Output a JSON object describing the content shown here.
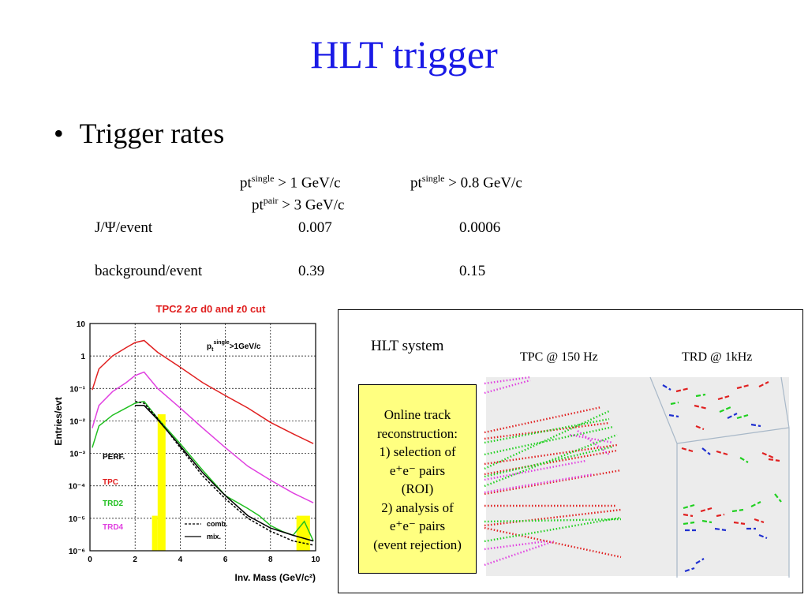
{
  "slide": {
    "title": "HLT trigger",
    "bullet": "Trigger rates"
  },
  "rates_table": {
    "col1_head_base": "pt",
    "col1_head_sup": "single",
    "col1_head_rest": "> 1 GeV/c",
    "col1_head2_base": "pt",
    "col1_head2_sup": "pair",
    "col1_head2_rest": "> 3 GeV/c",
    "col2_head_base": "pt",
    "col2_head_sup": "single",
    "col2_head_rest": "> 0.8 GeV/c",
    "rows": [
      {
        "label": "J/Ψ/event",
        "v1": "0.007",
        "v2": "0.0006"
      },
      {
        "label": "background/event",
        "v1": "0.39",
        "v2": "0.15"
      }
    ]
  },
  "chart_data": {
    "type": "line",
    "title": "TPC2 2σ d0 and z0 cut",
    "xlabel": "Inv. Mass (GeV/c²)",
    "ylabel": "Entries/evt",
    "scale_y": "log",
    "xlim": [
      0,
      10
    ],
    "ylim": [
      1e-06,
      10
    ],
    "x_ticks": [
      "0",
      "2",
      "4",
      "6",
      "8",
      "10"
    ],
    "y_ticks": [
      "10",
      "1",
      "10⁻¹",
      "10⁻²",
      "10⁻³",
      "10⁻⁴",
      "10⁻⁵",
      "10⁻⁶"
    ],
    "annotation": "pt single >1GeV/c",
    "annotation_parts": {
      "base": "p",
      "sub": "t",
      "sup": "single",
      "rest": ">1GeV/c"
    },
    "grid": true,
    "legend": [
      "PERF.",
      "TPC",
      "TRD2",
      "TRD4",
      "comb.",
      "mix."
    ],
    "legend_position": "bottom-left",
    "series": [
      {
        "name": "TPC",
        "color": "#e02020",
        "x": [
          0.1,
          0.4,
          1.0,
          1.6,
          2.0,
          2.4,
          3.0,
          4.0,
          5.0,
          6.0,
          7.0,
          8.0,
          9.0,
          9.9
        ],
        "y": [
          0.09,
          0.4,
          1.0,
          1.8,
          2.6,
          3.0,
          1.3,
          0.45,
          0.15,
          0.06,
          0.025,
          0.009,
          0.004,
          0.002
        ]
      },
      {
        "name": "TRD4",
        "color": "#e040e0",
        "x": [
          0.1,
          0.4,
          1.0,
          1.6,
          2.0,
          2.4,
          3.0,
          4.0,
          5.0,
          6.0,
          7.0,
          8.0,
          9.0,
          9.9
        ],
        "y": [
          0.006,
          0.03,
          0.08,
          0.15,
          0.25,
          0.32,
          0.1,
          0.025,
          0.006,
          0.0015,
          0.0004,
          0.00015,
          6e-05,
          3e-05
        ]
      },
      {
        "name": "TRD2",
        "color": "#20c020",
        "x": [
          0.1,
          0.4,
          1.0,
          1.6,
          2.0,
          2.4,
          3.0,
          4.0,
          5.0,
          6.0,
          7.0,
          7.5,
          8.0,
          8.5,
          9.0,
          9.5,
          9.9
        ],
        "y": [
          0.0015,
          0.007,
          0.015,
          0.025,
          0.035,
          0.04,
          0.012,
          0.002,
          0.0003,
          5e-05,
          2e-05,
          1.2e-05,
          6e-06,
          4e-06,
          3e-06,
          8e-06,
          2e-06
        ]
      },
      {
        "name": "comb.",
        "color": "#000000",
        "dash": true,
        "x": [
          2.0,
          2.4,
          3.0,
          4.0,
          5.0,
          6.0,
          7.0,
          8.0,
          9.0,
          9.9
        ],
        "y": [
          0.04,
          0.035,
          0.012,
          0.0015,
          0.0002,
          4e-05,
          1e-05,
          4e-06,
          2e-06,
          1.5e-06
        ]
      },
      {
        "name": "mix.",
        "color": "#000000",
        "x": [
          2.0,
          2.4,
          3.0,
          4.0,
          5.0,
          6.0,
          7.0,
          8.0,
          9.0,
          9.9
        ],
        "y": [
          0.03,
          0.03,
          0.011,
          0.0017,
          0.00025,
          5e-05,
          1.2e-05,
          5e-06,
          3e-06,
          2e-06
        ]
      }
    ],
    "bars": [
      {
        "x0": 2.75,
        "x1": 3.0,
        "y": 1.2e-05,
        "color": "#ffff00"
      },
      {
        "x0": 3.0,
        "x1": 3.35,
        "y": 0.016,
        "color": "#ffff00"
      },
      {
        "x0": 9.15,
        "x1": 9.75,
        "y": 1.2e-05,
        "color": "#ffff00"
      }
    ]
  },
  "hlt_panel": {
    "title": "HLT system",
    "tpc_label": "TPC @ 150 Hz",
    "trd_label": "TRD @ 1kHz",
    "box_lines": [
      "Online track",
      "reconstruction:",
      "1) selection of",
      "e⁺e⁻ pairs",
      "(ROI)",
      "2) analysis of",
      "e⁺e⁻ pairs",
      "(event rejection)"
    ],
    "track_colors": {
      "red": "#e02020",
      "green": "#20d020",
      "magenta": "#e040e0",
      "blue": "#2030d0"
    }
  }
}
